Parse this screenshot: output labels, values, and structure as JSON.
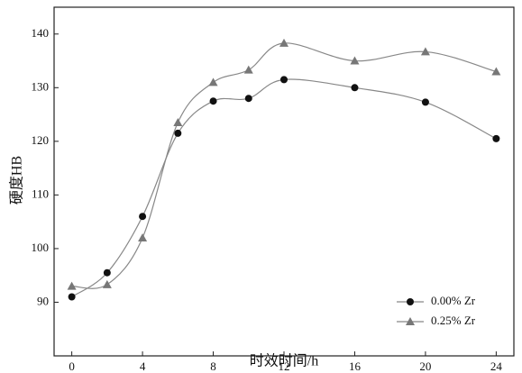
{
  "chart_data": {
    "type": "scatter",
    "x_label": "时效时间/h",
    "y_label": "硬度HB",
    "series": [
      {
        "name": "0.00% Zr",
        "color": "#111111",
        "marker": "circle",
        "x": [
          0,
          2,
          4,
          6,
          8,
          10,
          12,
          16,
          20,
          24
        ],
        "values": [
          91,
          95.5,
          106,
          121.5,
          127.5,
          128,
          131.5,
          130,
          127.3,
          120.5
        ]
      },
      {
        "name": "0.25% Zr",
        "color": "#777777",
        "marker": "triangle",
        "x": [
          0,
          2,
          4,
          6,
          8,
          10,
          12,
          16,
          20,
          24
        ],
        "values": [
          93,
          93.3,
          102,
          123.5,
          131,
          133.3,
          138.3,
          135,
          136.7,
          133
        ]
      }
    ],
    "xlim": [
      -1,
      25
    ],
    "xticks": [
      0,
      4,
      8,
      12,
      16,
      20,
      24
    ],
    "ylim": [
      80,
      145
    ],
    "yticks": [
      90,
      100,
      110,
      120,
      130,
      140
    ],
    "legend": "lower right",
    "smooth": true
  }
}
